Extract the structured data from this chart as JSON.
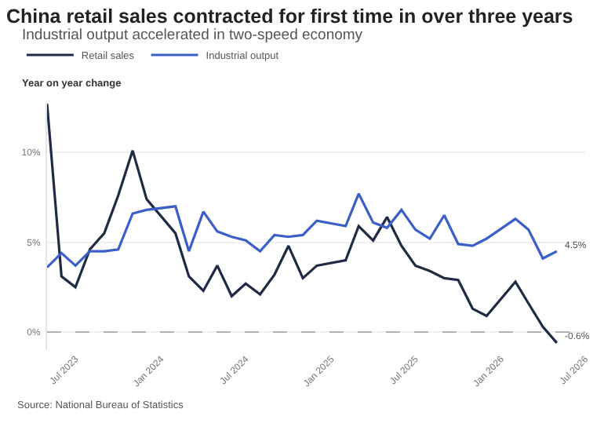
{
  "chart_data": {
    "type": "line",
    "title": "China retail sales contracted for first time in over three years",
    "subtitle": "Industrial output accelerated in two-speed economy",
    "ylabel": "Year on year change",
    "x": [
      "2023-05",
      "2023-06",
      "2023-07",
      "2023-08",
      "2023-09",
      "2023-10",
      "2023-11",
      "2023-12",
      "2024-02",
      "2024-03",
      "2024-04",
      "2024-05",
      "2024-06",
      "2024-07",
      "2024-08",
      "2024-09",
      "2024-10",
      "2024-11",
      "2024-12",
      "2025-02",
      "2025-03",
      "2025-04",
      "2025-05",
      "2025-06",
      "2025-07",
      "2025-08",
      "2025-09",
      "2025-10",
      "2025-11",
      "2025-12",
      "2026-02",
      "2026-03",
      "2026-04",
      "2026-05"
    ],
    "series": [
      {
        "name": "Retail sales",
        "color": "#1f2a44",
        "values": [
          12.7,
          3.1,
          2.5,
          4.6,
          5.5,
          7.6,
          10.1,
          7.4,
          5.5,
          3.1,
          2.3,
          3.7,
          2.0,
          2.7,
          2.1,
          3.2,
          4.8,
          3.0,
          3.7,
          4.0,
          5.9,
          5.1,
          6.4,
          4.8,
          3.7,
          3.4,
          3.0,
          2.9,
          1.3,
          0.9,
          2.8,
          1.6,
          0.3,
          -0.6
        ]
      },
      {
        "name": "Industrial output",
        "color": "#3a5fc8",
        "values": [
          3.6,
          4.4,
          3.7,
          4.5,
          4.5,
          4.6,
          6.6,
          6.8,
          7.0,
          4.5,
          6.7,
          5.6,
          5.3,
          5.1,
          4.5,
          5.4,
          5.3,
          5.4,
          6.2,
          5.9,
          7.7,
          6.1,
          5.8,
          6.8,
          5.7,
          5.2,
          6.5,
          4.9,
          4.8,
          5.2,
          6.3,
          5.7,
          4.1,
          4.5
        ]
      }
    ],
    "xlim": [
      "2023-05",
      "2026-07"
    ],
    "xticks": [
      {
        "value": "2023-07",
        "label": "Jul 2023"
      },
      {
        "value": "2024-01",
        "label": "Jan 2024"
      },
      {
        "value": "2024-07",
        "label": "Jul 2024"
      },
      {
        "value": "2025-01",
        "label": "Jan 2025"
      },
      {
        "value": "2025-07",
        "label": "Jul 2025"
      },
      {
        "value": "2026-01",
        "label": "Jan 2026"
      },
      {
        "value": "2026-07",
        "label": "Jul 2026"
      }
    ],
    "ylim": [
      -1,
      12.8
    ],
    "yticks": [
      {
        "value": 0,
        "label": "0%"
      },
      {
        "value": 5,
        "label": "5%"
      },
      {
        "value": 10,
        "label": "10%"
      }
    ],
    "grid": "y",
    "legend": "top left",
    "ref_lines": [
      {
        "axis": "y",
        "value": 0,
        "color": "#b0b0b0",
        "line_style": "dashed"
      }
    ],
    "annotations": [
      {
        "text": "-0.6%",
        "x": "2026-05",
        "y": -0.6
      },
      {
        "text": "4.5%",
        "x": "2026-05",
        "y": 4.5
      },
      "Source: National Bureau of Statistics"
    ]
  }
}
